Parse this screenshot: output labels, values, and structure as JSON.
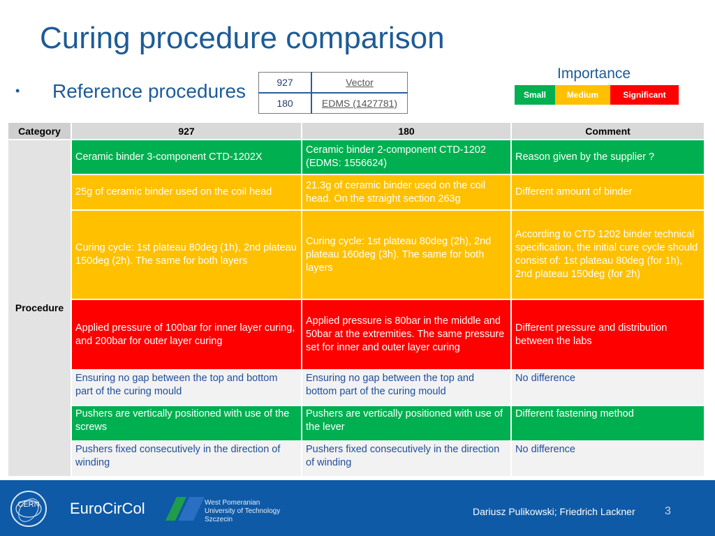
{
  "slide": {
    "title": "Curing procedure comparison",
    "bullet": "•",
    "reference_label": "Reference procedures"
  },
  "reference_table": [
    {
      "id": "927",
      "link": "Vector"
    },
    {
      "id": "180",
      "link": "EDMS (1427781)"
    }
  ],
  "importance": {
    "title": "Importance",
    "levels": [
      {
        "label": "Small",
        "color": "#00b050"
      },
      {
        "label": "Medium",
        "color": "#ffc000"
      },
      {
        "label": "Significant",
        "color": "#ff0000"
      }
    ]
  },
  "table": {
    "headers": [
      "Category",
      "927",
      "180",
      "Comment"
    ],
    "category": "Procedure",
    "rows": [
      {
        "c927": "Ceramic binder 3-component CTD-1202X",
        "c180": "Ceramic binder 2-component CTD-1202 (EDMS: 1556624)",
        "comment": "Reason  given by the supplier ?",
        "importance": "Small"
      },
      {
        "c927": "25g of ceramic binder used on the coil head",
        "c180": "21.3g of ceramic binder used on the coil head. On the straight section 263g",
        "comment": "Different amount of binder",
        "importance": "Medium"
      },
      {
        "c927": "Curing cycle: 1st plateau 80deg (1h), 2nd plateau 150deg (2h). The same for both layers",
        "c180": "Curing cycle: 1st plateau 80deg (2h), 2nd plateau 160deg (3h). The same for both layers",
        "comment": "According to CTD 1202 binder technical specification, the initial cure cycle should consist of: 1st plateau 80deg (for 1h), 2nd plateau 150deg (for 2h)",
        "importance": "Medium"
      },
      {
        "c927": "Applied pressure of 100bar for inner layer curing, and 200bar for outer layer curing",
        "c180": "Applied pressure is 80bar in the middle and 50bar at the extremities. The same pressure set for inner and outer layer curing",
        "comment": "Different pressure and distribution between the labs",
        "importance": "Significant"
      },
      {
        "c927": "Ensuring no gap between the top and bottom part of the curing mould",
        "c180": "Ensuring no gap between the top and bottom part of the curing mould",
        "comment": "No difference",
        "importance": "None"
      },
      {
        "c927": "Pushers are vertically positioned with use of the screws",
        "c180": "Pushers are vertically positioned with use of the lever",
        "comment": "Different fastening method",
        "importance": "Small"
      },
      {
        "c927": "Pushers fixed consecutively in the direction of winding",
        "c180": "Pushers fixed consecutively in the direction of winding",
        "comment": "No difference",
        "importance": "None"
      }
    ]
  },
  "footer": {
    "cern_logo": "CERN",
    "eurocircol_logo": "EuroCirCol",
    "university_lines": [
      "West Pomeranian",
      "University of Technology",
      "Szczecin"
    ],
    "authors": "Dariusz Pulikowski; Friedrich Lackner",
    "page_number": "3"
  }
}
